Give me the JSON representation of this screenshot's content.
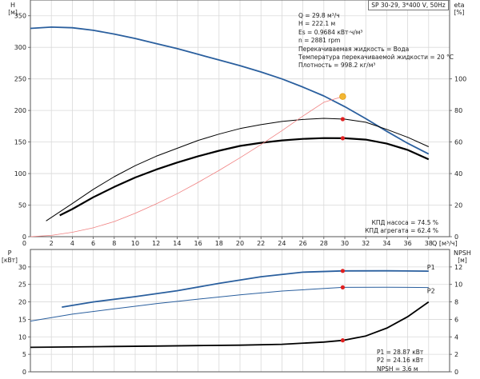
{
  "chart_data": [
    {
      "type": "line",
      "title": "SP 30-29, 3*400 V, 50Hz",
      "xlabel": "Q [м³/ч]",
      "ylabel_left": "H [м]",
      "ylabel_right": "eta [%]",
      "xlim": [
        0,
        40
      ],
      "ylim_left": [
        0,
        375
      ],
      "ylim_right": [
        0,
        150
      ],
      "x_ticks": [
        2,
        4,
        6,
        8,
        10,
        12,
        14,
        16,
        18,
        20,
        22,
        24,
        26,
        28,
        30,
        32,
        34,
        36,
        38
      ],
      "y_ticks_left": [
        0,
        50,
        100,
        150,
        200,
        250,
        300,
        350
      ],
      "y_ticks_right": [
        0,
        20,
        40,
        60,
        80,
        100
      ],
      "grid": true,
      "series": [
        {
          "name": "",
          "axis": "left",
          "color": "#2a5f9e",
          "x": [
            0,
            2,
            4,
            6,
            8,
            10,
            12,
            14,
            16,
            18,
            20,
            22,
            24,
            26,
            28,
            30,
            32,
            34,
            36,
            38
          ],
          "values": [
            330,
            332,
            331,
            327,
            321,
            314,
            306,
            298,
            289,
            280,
            271,
            261,
            250,
            237,
            223,
            206,
            187,
            167,
            148,
            131
          ]
        },
        {
          "name": "",
          "axis": "right",
          "color": "#000000",
          "x": [
            2.8,
            4,
            6,
            8,
            10,
            12,
            14,
            16,
            18,
            20,
            22,
            24,
            26,
            28,
            30,
            32,
            34,
            36,
            38
          ],
          "values": [
            13.5,
            17.5,
            25,
            31.5,
            37.5,
            42.5,
            47,
            51,
            54.5,
            57.5,
            59.5,
            61,
            62,
            62.5,
            62.4,
            61.5,
            59,
            55,
            49
          ]
        },
        {
          "name": "",
          "axis": "right",
          "color": "#000000",
          "x": [
            1.5,
            4,
            6,
            8,
            10,
            12,
            14,
            16,
            18,
            20,
            22,
            24,
            26,
            28,
            30,
            32,
            34,
            36,
            38
          ],
          "values": [
            10,
            21,
            30,
            38,
            45,
            51,
            56,
            61,
            65,
            68.5,
            71,
            73,
            74.3,
            75,
            74.5,
            72.5,
            68,
            63,
            57
          ]
        },
        {
          "name": "",
          "axis": "left",
          "color": "#f08080",
          "x": [
            0,
            2,
            4,
            6,
            8,
            10,
            12,
            14,
            16,
            18,
            20,
            22,
            24,
            26,
            28,
            29.8
          ],
          "values": [
            0,
            2,
            7,
            14,
            24,
            37,
            52,
            68,
            86,
            105,
            125,
            146,
            168,
            191,
            213,
            222.1
          ]
        }
      ],
      "markers": [
        {
          "axis": "left",
          "x": 29.8,
          "value": 222.1,
          "color": "#f2b632"
        },
        {
          "axis": "right",
          "x": 29.8,
          "value": 74.5,
          "color": "#e02020"
        },
        {
          "axis": "right",
          "x": 29.8,
          "value": 62.4,
          "color": "#e02020"
        }
      ],
      "info": [
        "Q = 29.8 м³/ч",
        "H = 222.1 м",
        "Es = 0.9684 кВт·ч/м³",
        "n = 2881 rpm",
        "Перекачиваемая жидкость = Вода",
        "Температура перекачиваемой жидкости = 20 °C",
        "Плотность = 998.2 кг/м³"
      ],
      "efficiency_labels": [
        "КПД насоса = 74.5 %",
        "КПД агрегата = 62.4 %"
      ]
    },
    {
      "type": "line",
      "ylabel_left": "P [кВт]",
      "ylabel_right": "NPSH [м]",
      "xlim": [
        0,
        40
      ],
      "ylim_left": [
        0,
        35
      ],
      "ylim_right": [
        0,
        14
      ],
      "y_ticks_left": [
        0,
        5,
        10,
        15,
        20,
        25,
        30
      ],
      "y_ticks_right": [
        0,
        2,
        4,
        6,
        8,
        10,
        12
      ],
      "grid": true,
      "series": [
        {
          "name": "P1",
          "axis": "left",
          "color": "#2a5f9e",
          "x": [
            3,
            6,
            10,
            14,
            18,
            22,
            26,
            29.8,
            34,
            38
          ],
          "values": [
            18.5,
            20,
            21.5,
            23.2,
            25.3,
            27.2,
            28.5,
            28.87,
            28.9,
            28.8
          ]
        },
        {
          "name": "P2",
          "axis": "left",
          "color": "#2a5f9e",
          "x": [
            0,
            4,
            8,
            12,
            16,
            20,
            24,
            29.8,
            34,
            38
          ],
          "values": [
            14.5,
            16.5,
            18,
            19.5,
            20.8,
            22,
            23.1,
            24.16,
            24.2,
            24.1
          ]
        },
        {
          "name": "",
          "axis": "right",
          "color": "#000000",
          "x": [
            0,
            4,
            8,
            12,
            16,
            20,
            24,
            28,
            29.8,
            32,
            34,
            36,
            38
          ],
          "values": [
            2.8,
            2.85,
            2.9,
            2.95,
            3.0,
            3.05,
            3.15,
            3.4,
            3.6,
            4.1,
            5.0,
            6.3,
            8.0
          ]
        }
      ],
      "markers": [
        {
          "axis": "left",
          "x": 29.8,
          "value": 28.87,
          "color": "#e02020"
        },
        {
          "axis": "left",
          "x": 29.8,
          "value": 24.16,
          "color": "#e02020"
        },
        {
          "axis": "right",
          "x": 29.8,
          "value": 3.6,
          "color": "#e02020"
        }
      ],
      "info": [
        "P1 = 28.87 кВт",
        "P2 = 24.16 кВт",
        "NPSH = 3.6 м"
      ]
    }
  ]
}
